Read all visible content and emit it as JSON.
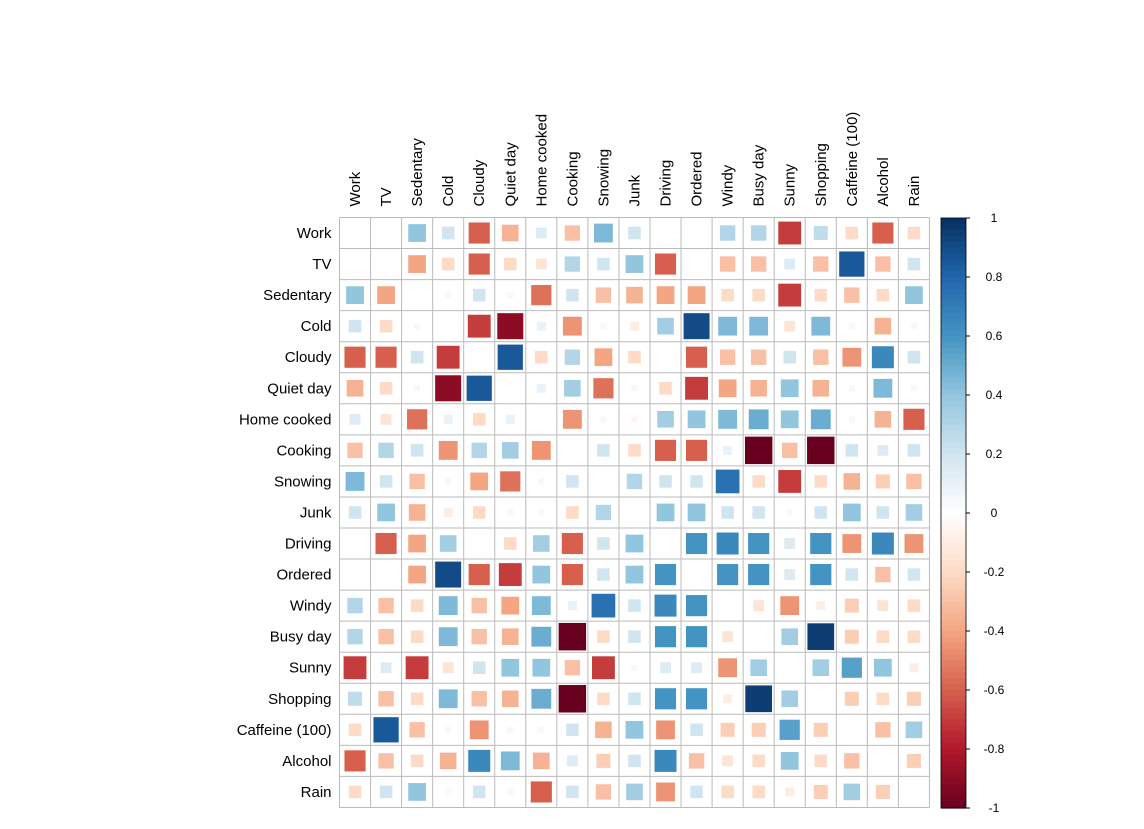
{
  "chart_data": {
    "type": "heatmap",
    "variables": [
      "Work",
      "TV",
      "Sedentary",
      "Cold",
      "Cloudy",
      "Quiet day",
      "Home cooked",
      "Cooking",
      "Snowing",
      "Junk",
      "Driving",
      "Ordered",
      "Windy",
      "Busy day",
      "Sunny",
      "Shopping",
      "Caffeine (100)",
      "Alcohol",
      "Rain"
    ],
    "matrix": [
      [
        null,
        null,
        0.4,
        0.2,
        -0.6,
        -0.35,
        0.15,
        -0.3,
        0.45,
        0.2,
        null,
        null,
        0.3,
        0.3,
        -0.7,
        0.25,
        -0.2,
        -0.6,
        -0.2
      ],
      [
        null,
        null,
        -0.4,
        -0.2,
        -0.6,
        -0.2,
        -0.15,
        0.3,
        0.2,
        0.4,
        -0.6,
        null,
        -0.3,
        -0.3,
        0.15,
        -0.3,
        0.85,
        -0.3,
        0.2
      ],
      [
        0.4,
        -0.4,
        null,
        0.05,
        0.2,
        0.05,
        -0.55,
        0.2,
        -0.3,
        -0.35,
        -0.4,
        -0.4,
        -0.2,
        -0.2,
        -0.7,
        -0.2,
        -0.3,
        -0.2,
        0.4
      ],
      [
        0.2,
        -0.2,
        0.05,
        null,
        -0.7,
        -0.9,
        0.1,
        -0.45,
        0.05,
        -0.1,
        0.35,
        0.9,
        0.45,
        0.45,
        -0.15,
        0.45,
        0.05,
        -0.35,
        0.05
      ],
      [
        -0.6,
        -0.6,
        0.2,
        -0.7,
        null,
        0.85,
        -0.2,
        0.3,
        -0.4,
        -0.2,
        null,
        -0.6,
        -0.3,
        -0.3,
        0.2,
        -0.3,
        -0.45,
        0.65,
        0.2
      ],
      [
        -0.35,
        -0.2,
        0.05,
        -0.9,
        0.85,
        null,
        0.1,
        0.35,
        -0.55,
        -0.05,
        -0.2,
        -0.7,
        -0.4,
        -0.35,
        0.4,
        -0.35,
        0.05,
        0.45,
        0.05
      ],
      [
        0.15,
        -0.15,
        -0.55,
        0.1,
        -0.2,
        0.1,
        null,
        -0.45,
        0.05,
        -0.05,
        0.35,
        0.4,
        0.45,
        0.5,
        0.4,
        0.5,
        0.05,
        -0.35,
        -0.6
      ],
      [
        -0.3,
        0.3,
        0.2,
        -0.45,
        0.3,
        0.35,
        -0.45,
        null,
        0.2,
        -0.2,
        -0.6,
        -0.6,
        0.1,
        -1.0,
        -0.3,
        -1.0,
        0.2,
        0.15,
        0.2
      ],
      [
        0.45,
        0.2,
        -0.3,
        0.05,
        -0.4,
        -0.55,
        0.05,
        0.2,
        null,
        0.3,
        0.2,
        0.2,
        0.75,
        -0.2,
        -0.7,
        -0.2,
        -0.35,
        -0.25,
        -0.3
      ],
      [
        0.2,
        0.4,
        -0.35,
        -0.1,
        -0.2,
        -0.05,
        -0.05,
        -0.2,
        0.3,
        null,
        0.4,
        0.4,
        0.2,
        0.2,
        0.05,
        0.2,
        0.4,
        0.2,
        0.35
      ],
      [
        null,
        -0.6,
        -0.4,
        0.35,
        null,
        -0.2,
        0.35,
        -0.6,
        0.2,
        0.4,
        null,
        0.6,
        0.65,
        0.6,
        0.15,
        0.6,
        -0.45,
        0.65,
        -0.45
      ],
      [
        null,
        null,
        -0.4,
        0.9,
        -0.6,
        -0.7,
        0.4,
        -0.6,
        0.2,
        0.4,
        0.6,
        null,
        0.6,
        0.6,
        0.15,
        0.6,
        0.2,
        -0.3,
        0.2
      ],
      [
        0.3,
        -0.3,
        -0.2,
        0.45,
        -0.3,
        -0.4,
        0.45,
        0.1,
        0.75,
        0.2,
        0.65,
        0.6,
        null,
        -0.15,
        -0.45,
        -0.1,
        -0.25,
        -0.15,
        -0.2
      ],
      [
        0.3,
        -0.3,
        -0.2,
        0.45,
        -0.3,
        -0.35,
        0.5,
        -1.0,
        -0.2,
        0.2,
        0.6,
        0.6,
        -0.15,
        null,
        0.35,
        0.95,
        -0.25,
        -0.2,
        -0.2
      ],
      [
        -0.7,
        0.15,
        -0.7,
        -0.15,
        0.2,
        0.4,
        0.4,
        -0.3,
        -0.7,
        0.05,
        0.15,
        0.15,
        -0.45,
        0.35,
        null,
        0.35,
        0.55,
        0.4,
        -0.1
      ],
      [
        0.25,
        -0.3,
        -0.2,
        0.45,
        -0.3,
        -0.35,
        0.5,
        -1.0,
        -0.2,
        0.2,
        0.6,
        0.6,
        -0.1,
        0.95,
        0.35,
        null,
        -0.25,
        -0.2,
        -0.25
      ],
      [
        -0.2,
        0.85,
        -0.3,
        0.05,
        -0.45,
        0.05,
        0.05,
        0.2,
        -0.35,
        0.4,
        -0.45,
        0.2,
        -0.25,
        -0.25,
        0.55,
        -0.25,
        null,
        -0.3,
        0.35
      ],
      [
        -0.6,
        -0.3,
        -0.2,
        -0.35,
        0.65,
        0.45,
        -0.35,
        0.15,
        -0.25,
        0.2,
        0.65,
        -0.3,
        -0.15,
        -0.2,
        0.4,
        -0.2,
        -0.3,
        null,
        -0.25
      ],
      [
        -0.2,
        0.2,
        0.4,
        0.05,
        0.2,
        0.05,
        -0.6,
        0.2,
        -0.3,
        0.35,
        -0.45,
        0.2,
        -0.2,
        -0.2,
        -0.1,
        -0.25,
        0.35,
        -0.25,
        null
      ]
    ],
    "method": "square",
    "legend": {
      "position": "right",
      "range": [
        -1,
        1
      ],
      "ticks": [
        "1",
        "0.8",
        "0.6",
        "0.4",
        "0.2",
        "0",
        "-0.2",
        "-0.4",
        "-0.6",
        "-0.8",
        "-1"
      ]
    },
    "colors": {
      "negative_end": "#67001F",
      "neutral": "#FFFFFF",
      "positive_end": "#053061",
      "grid": "#BBBBBB"
    }
  }
}
